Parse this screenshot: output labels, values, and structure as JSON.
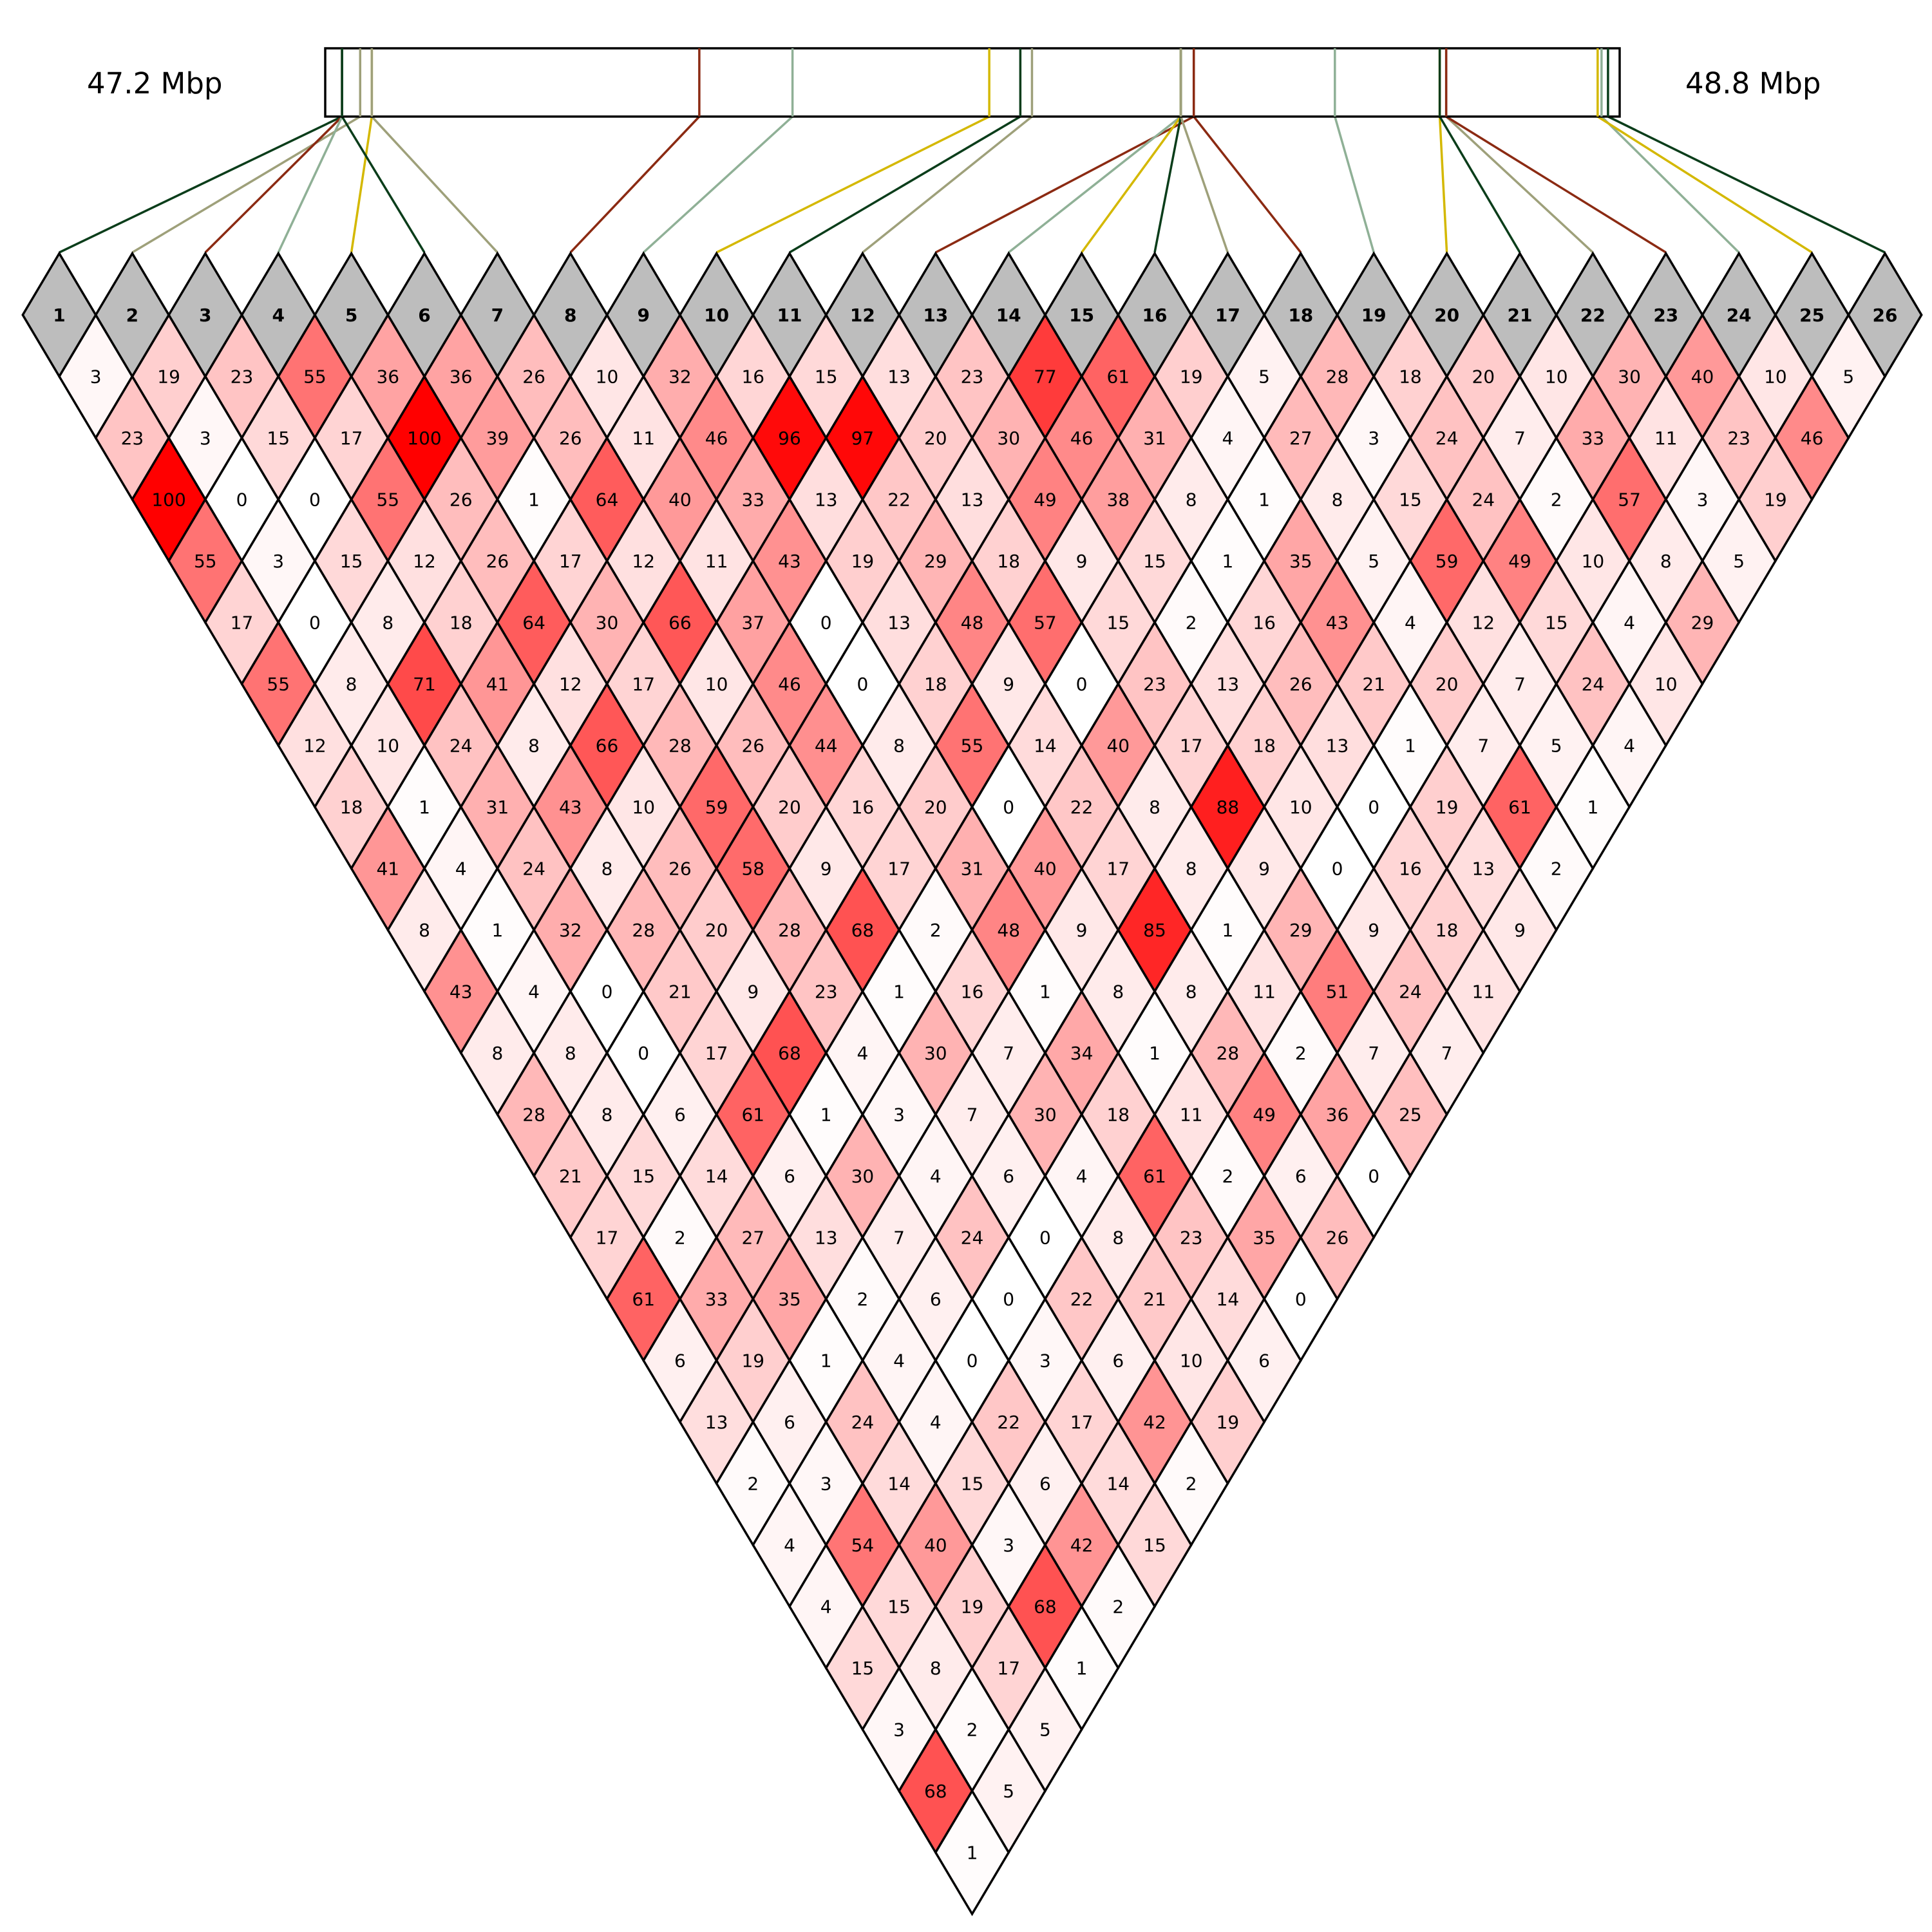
{
  "chart_data": {
    "type": "heatmap",
    "subtype": "linkage-disequilibrium-triangle",
    "region": {
      "start_label": "47.2 Mbp",
      "end_label": "48.8 Mbp"
    },
    "markers": [
      "1",
      "2",
      "3",
      "4",
      "5",
      "6",
      "7",
      "8",
      "9",
      "10",
      "11",
      "12",
      "13",
      "14",
      "15",
      "16",
      "17",
      "18",
      "19",
      "20",
      "21",
      "22",
      "23",
      "24",
      "25",
      "26"
    ],
    "marker_relative_positions": [
      0.013,
      0.027,
      0.013,
      0.013,
      0.036,
      0.013,
      0.036,
      0.289,
      0.361,
      0.513,
      0.537,
      0.546,
      0.671,
      0.661,
      0.661,
      0.661,
      0.661,
      0.671,
      0.78,
      0.861,
      0.861,
      0.866,
      0.866,
      0.986,
      0.983,
      0.991
    ],
    "marker_line_colors": [
      "#0a3d1a",
      "#9ea07a",
      "#8b2a12",
      "#8fb096",
      "#d4b800",
      "#0a3d1a",
      "#9ea07a",
      "#8b2a12",
      "#8fb096",
      "#d4b800",
      "#0a3d1a",
      "#9ea07a",
      "#8b2a12",
      "#8fb096",
      "#d4b800",
      "#0a3d1a",
      "#9ea07a",
      "#8b2a12",
      "#8fb096",
      "#d4b800",
      "#0a3d1a",
      "#9ea07a",
      "#8b2a12",
      "#8fb096",
      "#d4b800",
      "#0a3d1a"
    ],
    "value_scale": {
      "min": 0,
      "max": 100,
      "low_color": "#ffffff",
      "high_color": "#ff0000"
    },
    "cells_by_distance": [
      [
        3,
        19,
        23,
        55,
        36,
        36,
        26,
        10,
        32,
        16,
        15,
        13,
        23,
        77,
        61,
        19,
        5,
        28,
        18,
        20,
        10,
        30,
        40,
        10,
        5
      ],
      [
        23,
        3,
        15,
        17,
        100,
        39,
        26,
        11,
        46,
        96,
        97,
        20,
        30,
        46,
        31,
        4,
        27,
        3,
        24,
        7,
        33,
        11,
        23,
        46
      ],
      [
        100,
        0,
        0,
        55,
        26,
        1,
        64,
        40,
        33,
        13,
        22,
        13,
        49,
        38,
        8,
        1,
        8,
        15,
        24,
        2,
        57,
        3,
        19
      ],
      [
        55,
        3,
        15,
        12,
        26,
        17,
        12,
        11,
        43,
        19,
        29,
        18,
        9,
        15,
        1,
        35,
        5,
        59,
        49,
        10,
        8,
        5
      ],
      [
        17,
        0,
        8,
        18,
        64,
        30,
        66,
        37,
        0,
        13,
        48,
        57,
        15,
        2,
        16,
        43,
        4,
        12,
        15,
        4,
        29
      ],
      [
        55,
        8,
        71,
        41,
        12,
        17,
        10,
        46,
        0,
        18,
        9,
        0,
        23,
        13,
        26,
        21,
        20,
        7,
        24,
        10
      ],
      [
        12,
        10,
        24,
        8,
        66,
        28,
        26,
        44,
        8,
        55,
        14,
        40,
        17,
        18,
        13,
        1,
        7,
        5,
        4
      ],
      [
        18,
        1,
        31,
        43,
        10,
        59,
        20,
        16,
        20,
        0,
        22,
        8,
        88,
        10,
        0,
        19,
        61,
        1
      ],
      [
        41,
        4,
        24,
        8,
        26,
        58,
        9,
        17,
        31,
        40,
        17,
        8,
        9,
        0,
        16,
        13,
        2
      ],
      [
        8,
        1,
        32,
        28,
        20,
        28,
        68,
        2,
        48,
        9,
        85,
        1,
        29,
        9,
        18,
        9
      ],
      [
        43,
        4,
        0,
        21,
        9,
        23,
        1,
        16,
        1,
        8,
        8,
        11,
        51,
        24,
        11
      ],
      [
        8,
        8,
        0,
        17,
        68,
        4,
        30,
        7,
        34,
        1,
        28,
        2,
        7,
        7
      ],
      [
        28,
        8,
        6,
        61,
        1,
        3,
        7,
        30,
        18,
        11,
        49,
        36,
        25
      ],
      [
        21,
        15,
        14,
        6,
        30,
        4,
        6,
        4,
        61,
        2,
        6,
        0
      ],
      [
        17,
        2,
        27,
        13,
        7,
        24,
        0,
        8,
        23,
        35,
        26
      ],
      [
        61,
        33,
        35,
        2,
        6,
        0,
        22,
        21,
        14,
        0
      ],
      [
        6,
        19,
        1,
        4,
        0,
        3,
        6,
        10,
        6
      ],
      [
        13,
        6,
        24,
        4,
        22,
        17,
        42,
        19
      ],
      [
        2,
        3,
        14,
        15,
        6,
        14,
        2
      ],
      [
        4,
        54,
        40,
        3,
        42,
        15
      ],
      [
        4,
        15,
        19,
        68,
        2
      ],
      [
        15,
        8,
        17,
        1
      ],
      [
        3,
        2,
        5
      ],
      [
        68,
        5
      ],
      [
        1
      ]
    ]
  }
}
